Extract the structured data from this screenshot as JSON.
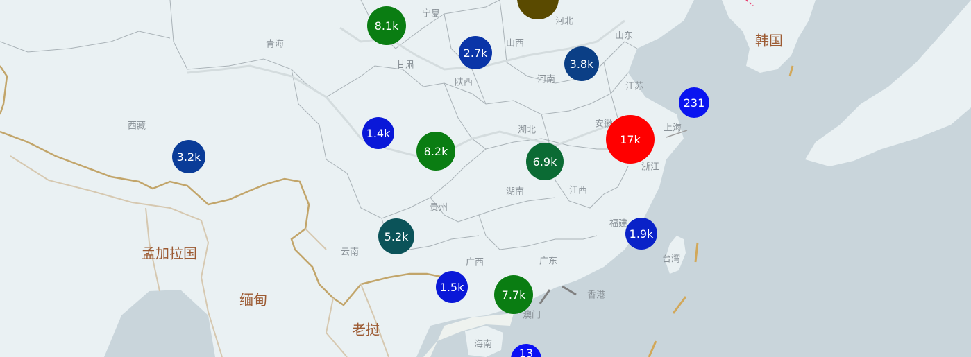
{
  "provinces": [
    {
      "name": "宁夏",
      "id": "ningxia"
    },
    {
      "name": "河北",
      "id": "hebei"
    },
    {
      "name": "山东",
      "id": "shandong"
    },
    {
      "name": "青海",
      "id": "qinghai"
    },
    {
      "name": "山西",
      "id": "shanxi"
    },
    {
      "name": "甘肃",
      "id": "gansu"
    },
    {
      "name": "陕西",
      "id": "shaanxi"
    },
    {
      "name": "河南",
      "id": "henan"
    },
    {
      "name": "江苏",
      "id": "jiangsu"
    },
    {
      "name": "西藏",
      "id": "xizang"
    },
    {
      "name": "湖北",
      "id": "hubei"
    },
    {
      "name": "安徽",
      "id": "anhui"
    },
    {
      "name": "上海",
      "id": "shanghai"
    },
    {
      "name": "浙江",
      "id": "zhejiang"
    },
    {
      "name": "湖南",
      "id": "hunan"
    },
    {
      "name": "江西",
      "id": "jiangxi"
    },
    {
      "name": "贵州",
      "id": "guizhou"
    },
    {
      "name": "福建",
      "id": "fujian"
    },
    {
      "name": "云南",
      "id": "yunnan"
    },
    {
      "name": "广西",
      "id": "guangxi"
    },
    {
      "name": "广东",
      "id": "guangdong"
    },
    {
      "name": "台湾",
      "id": "taiwan"
    },
    {
      "name": "香港",
      "id": "hongkong"
    },
    {
      "name": "澳门",
      "id": "macau"
    },
    {
      "name": "海南",
      "id": "hainan"
    }
  ],
  "countries": [
    {
      "name": "韩国",
      "id": "korea"
    },
    {
      "name": "孟加拉国",
      "id": "bangladesh"
    },
    {
      "name": "缅甸",
      "id": "myanmar"
    },
    {
      "name": "老挝",
      "id": "laos"
    }
  ],
  "bubbles": [
    {
      "id": "hebei-bubble",
      "label": "",
      "color": "#5a4a00"
    },
    {
      "id": "gansu-bubble",
      "label": "8.1k",
      "color": "#0a7d12"
    },
    {
      "id": "shanxi-bubble",
      "label": "2.7k",
      "color": "#0a35a8"
    },
    {
      "id": "henan-bubble",
      "label": "3.8k",
      "color": "#0b3f86"
    },
    {
      "id": "shanghai-bubble",
      "label": "231",
      "color": "#0a14f0"
    },
    {
      "id": "qinghai-sichuan-bubble",
      "label": "1.4k",
      "color": "#0a18d8"
    },
    {
      "id": "chongqing-bubble",
      "label": "8.2k",
      "color": "#0a7d12"
    },
    {
      "id": "hubei-bubble",
      "label": "6.9k",
      "color": "#0b6b34"
    },
    {
      "id": "zhejiang-bubble",
      "label": "17k",
      "color": "#ff0000"
    },
    {
      "id": "xizang-bubble",
      "label": "3.2k",
      "color": "#0a3c98"
    },
    {
      "id": "yunnan-bubble",
      "label": "5.2k",
      "color": "#0b5359"
    },
    {
      "id": "fujian-bubble",
      "label": "1.9k",
      "color": "#0a22c8"
    },
    {
      "id": "guangxi-bubble",
      "label": "1.5k",
      "color": "#0a18d8"
    },
    {
      "id": "guangdong-bubble",
      "label": "7.7k",
      "color": "#0a7d12"
    },
    {
      "id": "hainan-bubble",
      "label": "13",
      "color": "#0a10f4"
    }
  ]
}
